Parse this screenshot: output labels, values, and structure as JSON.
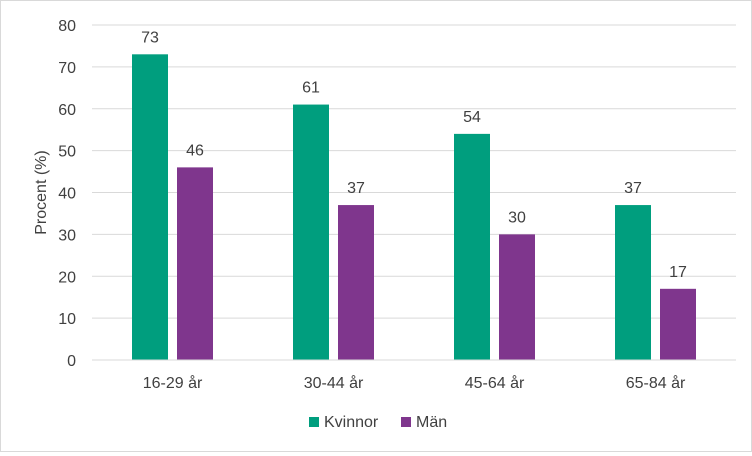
{
  "chart_data": {
    "type": "bar",
    "categories": [
      "16-29 år",
      "30-44 år",
      "45-64 år",
      "65-84 år"
    ],
    "series": [
      {
        "name": "Kvinnor",
        "values": [
          73,
          61,
          54,
          37
        ],
        "color": "#009e7e"
      },
      {
        "name": "Män",
        "values": [
          46,
          37,
          30,
          17
        ],
        "color": "#7f368d"
      }
    ],
    "ylabel": "Procent (%)",
    "xlabel": "",
    "ylim": [
      0,
      80
    ],
    "yticks": [
      0,
      10,
      20,
      30,
      40,
      50,
      60,
      70,
      80
    ],
    "grid": true,
    "legend_position": "bottom",
    "data_labels": true
  }
}
